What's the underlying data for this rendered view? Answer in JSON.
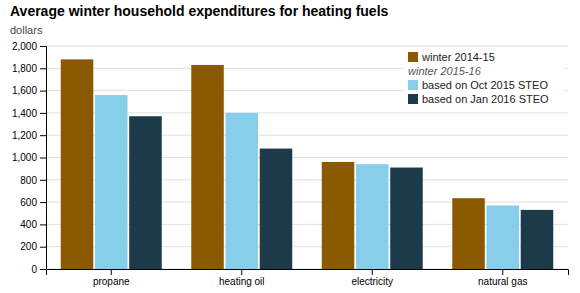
{
  "chart_data": {
    "type": "bar",
    "title": "Average winter household expenditures for heating fuels",
    "ylabel": "dollars",
    "categories": [
      "propane",
      "heating oil",
      "electricity",
      "natural gas"
    ],
    "series": [
      {
        "name": "winter 2014-15",
        "color": "#8B5A00",
        "values": [
          1880,
          1830,
          960,
          635
        ]
      },
      {
        "name": "based on Oct 2015 STEO",
        "color": "#87CEEB",
        "values": [
          1560,
          1400,
          940,
          570
        ]
      },
      {
        "name": "based on Jan 2016 STEO",
        "color": "#1C3A4A",
        "values": [
          1370,
          1080,
          910,
          530
        ]
      }
    ],
    "annotations": [
      "winter 2015-16"
    ],
    "ylim": [
      0,
      2000
    ],
    "yticks": [
      0,
      200,
      400,
      600,
      800,
      {
        "value": 1000,
        "label": "1,000"
      },
      {
        "value": 1200,
        "label": "1,200"
      },
      {
        "value": 1400,
        "label": "1,400"
      },
      {
        "value": 1600,
        "label": "1,600"
      },
      {
        "value": 1800,
        "label": "1,800"
      },
      {
        "value": 2000,
        "label": "2,000"
      }
    ],
    "grid": true,
    "legend": "top-right"
  }
}
